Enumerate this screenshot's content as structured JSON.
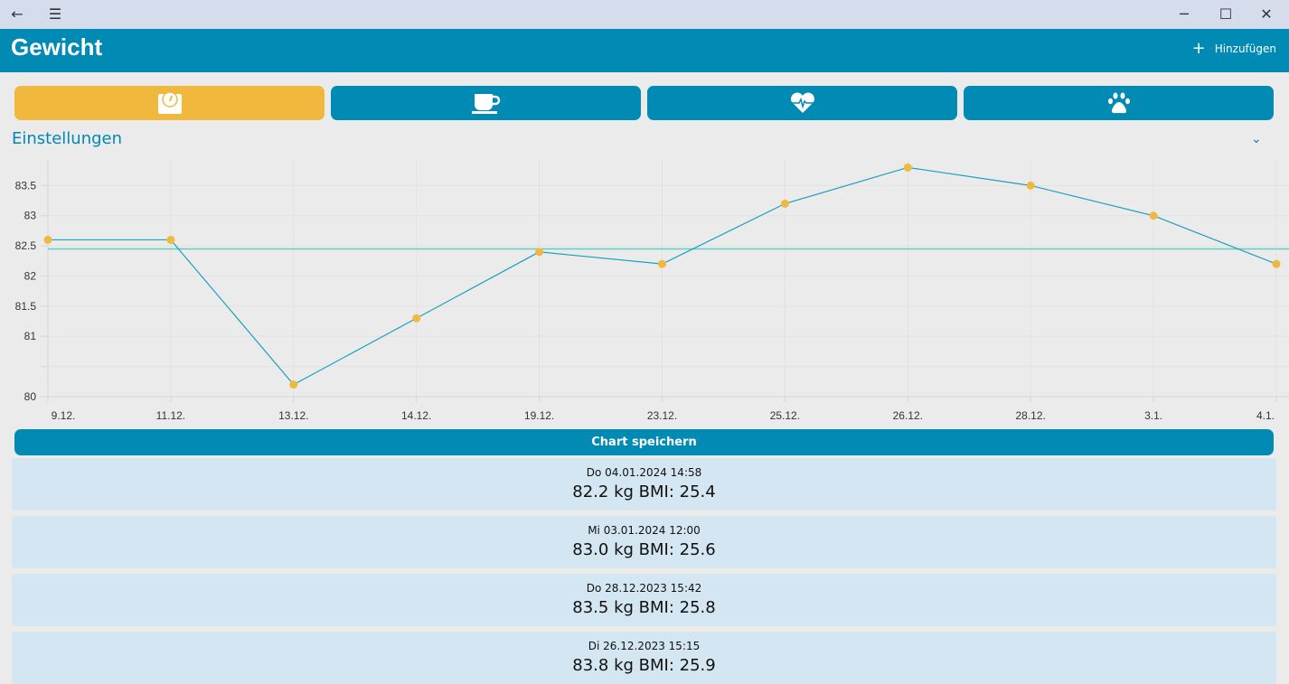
{
  "window": {
    "back_icon": "arrow-left",
    "menu_icon": "hamburger",
    "minimize": "─",
    "maximize": "☐",
    "close": "✕"
  },
  "header": {
    "title": "Gewicht",
    "add_label": "Hinzufügen",
    "add_icon": "+"
  },
  "tabs": [
    {
      "icon": "scale-icon",
      "active": true
    },
    {
      "icon": "coffee-cup-icon",
      "active": false
    },
    {
      "icon": "heart-pulse-icon",
      "active": false
    },
    {
      "icon": "paw-icon",
      "active": false
    }
  ],
  "settings": {
    "label": "Einstellungen",
    "chevron": "⌄"
  },
  "colors": {
    "primary": "#008ab4",
    "accent": "#f0b93e",
    "line": "#1a9fc0",
    "mean": "#5fd0c4",
    "entry_bg": "#d4e6f2"
  },
  "chart_data": {
    "type": "line",
    "categories": [
      "9.12.",
      "11.12.",
      "13.12.",
      "14.12.",
      "19.12.",
      "23.12.",
      "25.12.",
      "26.12.",
      "28.12.",
      "3.1.",
      "4.1."
    ],
    "values": [
      82.6,
      82.6,
      80.2,
      81.3,
      82.4,
      82.2,
      83.2,
      83.8,
      83.5,
      83.0,
      82.2
    ],
    "mean": 82.45,
    "yticks": [
      80,
      80.5,
      81,
      81.5,
      82,
      82.5,
      83,
      83.5
    ],
    "ytick_labels": [
      "80",
      "",
      "81",
      "81.5",
      "82",
      "82.5",
      "83",
      "83.5"
    ],
    "ylim": [
      80,
      83.94
    ],
    "grid": true,
    "title": "",
    "xlabel": "",
    "ylabel": ""
  },
  "save_button": "Chart speichern",
  "entries": [
    {
      "date": "Do 04.01.2024 14:58",
      "value": "82.2 kg BMI: 25.4"
    },
    {
      "date": "Mi 03.01.2024 12:00",
      "value": "83.0 kg BMI: 25.6"
    },
    {
      "date": "Do 28.12.2023 15:42",
      "value": "83.5 kg BMI: 25.8"
    },
    {
      "date": "Di 26.12.2023 15:15",
      "value": "83.8 kg BMI: 25.9"
    }
  ]
}
